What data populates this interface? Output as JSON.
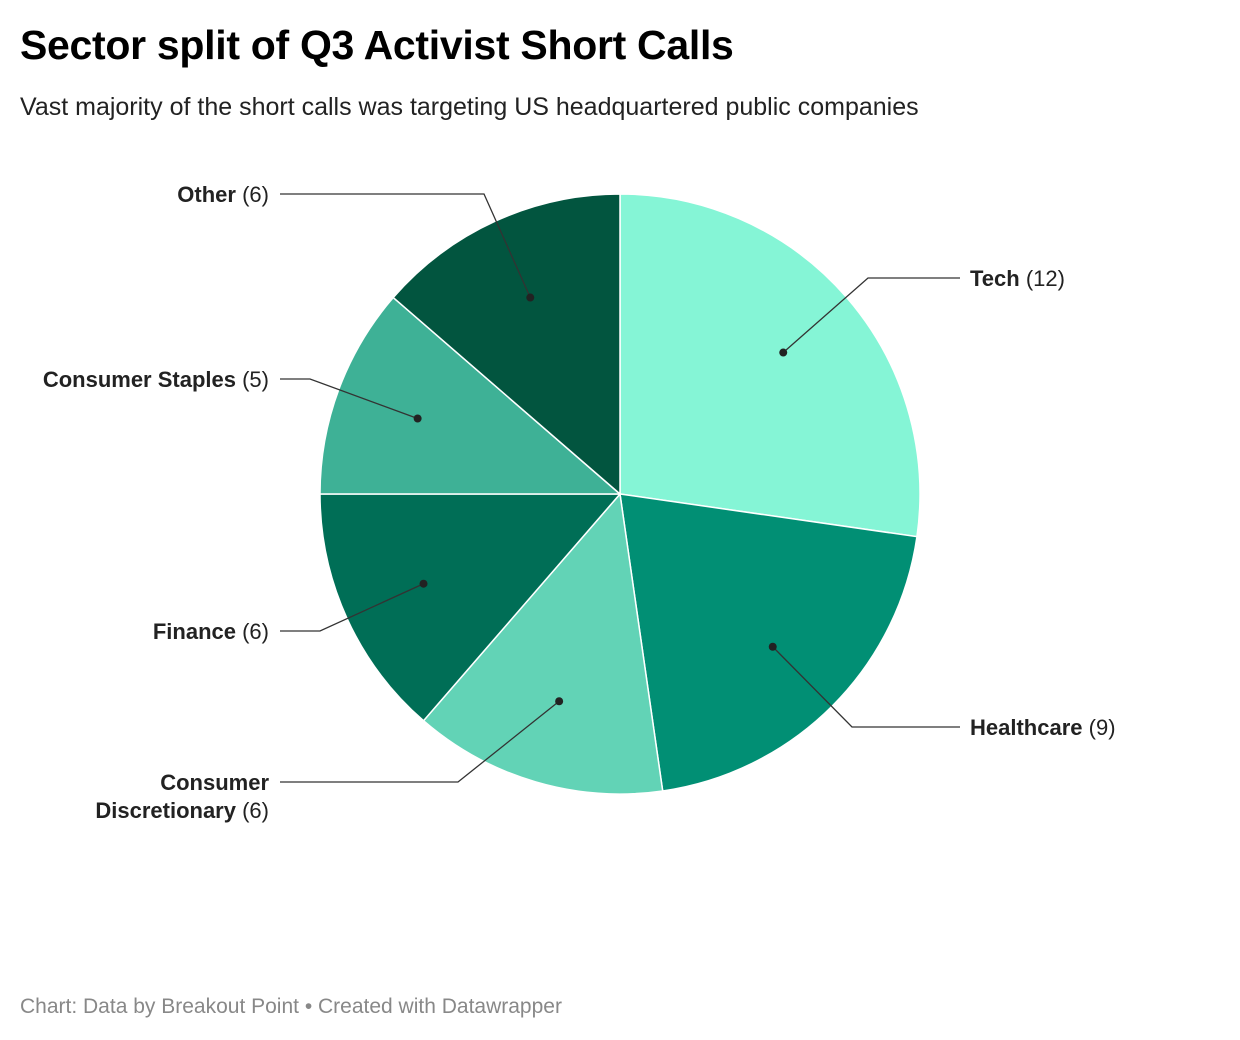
{
  "header": {
    "title": "Sector split of Q3 Activist Short Calls",
    "subtitle": "Vast majority of the short calls was targeting US headquartered public companies"
  },
  "chart_data": {
    "type": "pie",
    "title": "Sector split of Q3 Activist Short Calls",
    "subtitle": "Vast majority of the short calls was targeting US headquartered public companies",
    "slices": [
      {
        "name": "Tech",
        "value": 12,
        "color": "#85f5d6"
      },
      {
        "name": "Healthcare",
        "value": 9,
        "color": "#018f74"
      },
      {
        "name": "Consumer Discretionary",
        "value": 6,
        "color": "#62d3b6"
      },
      {
        "name": "Finance",
        "value": 6,
        "color": "#006e56"
      },
      {
        "name": "Consumer Staples",
        "value": 5,
        "color": "#3eb196"
      },
      {
        "name": "Other",
        "value": 6,
        "color": "#02553f"
      }
    ],
    "labels": [
      {
        "name": "Tech",
        "value_text": "(12)"
      },
      {
        "name": "Healthcare",
        "value_text": "(9)"
      },
      {
        "name": "Consumer",
        "name_line2": "Discretionary",
        "value_text": "(6)"
      },
      {
        "name": "Finance",
        "value_text": "(6)"
      },
      {
        "name": "Consumer Staples",
        "value_text": "(5)"
      },
      {
        "name": "Other",
        "value_text": "(6)"
      }
    ]
  },
  "footer": {
    "text": "Chart: Data by Breakout Point • Created with Datawrapper"
  }
}
